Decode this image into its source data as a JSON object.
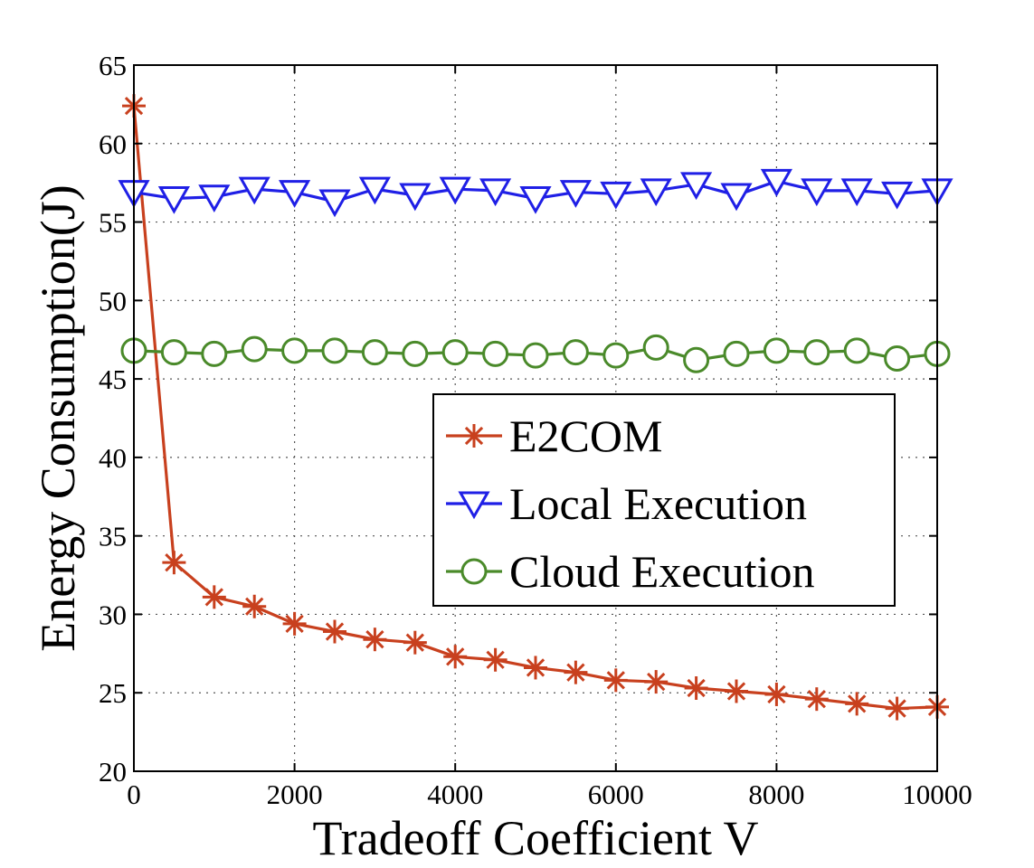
{
  "chart_data": {
    "type": "line",
    "title": "",
    "xlabel": "Tradeoff Coefficient V",
    "ylabel": "Energy Consumption(J)",
    "xlim": [
      0,
      10000
    ],
    "ylim": [
      20,
      65
    ],
    "xticks": [
      "0",
      "2000",
      "4000",
      "6000",
      "8000",
      "10000"
    ],
    "yticks": [
      "20",
      "25",
      "30",
      "35",
      "40",
      "45",
      "50",
      "55",
      "60",
      "65"
    ],
    "grid": true,
    "legend_position": "center-right",
    "x": [
      0,
      500,
      1000,
      1500,
      2000,
      2500,
      3000,
      3500,
      4000,
      4500,
      5000,
      5500,
      6000,
      6500,
      7000,
      7500,
      8000,
      8500,
      9000,
      9500,
      10000
    ],
    "series": [
      {
        "name": "E2COM",
        "color": "#c8401e",
        "marker": "asterisk",
        "values": [
          62.4,
          33.3,
          31.1,
          30.5,
          29.4,
          28.9,
          28.4,
          28.2,
          27.3,
          27.1,
          26.6,
          26.3,
          25.8,
          25.7,
          25.3,
          25.1,
          24.9,
          24.6,
          24.3,
          24.0,
          24.1
        ]
      },
      {
        "name": "Local Execution",
        "color": "#1f1fe6",
        "marker": "triangle-down",
        "values": [
          56.9,
          56.5,
          56.6,
          57.1,
          56.9,
          56.3,
          57.1,
          56.7,
          57.1,
          57.0,
          56.5,
          56.9,
          56.8,
          57.0,
          57.4,
          56.7,
          57.6,
          57.0,
          57.0,
          56.8,
          57.0
        ]
      },
      {
        "name": "Cloud Execution",
        "color": "#4a8a2a",
        "marker": "circle",
        "values": [
          46.8,
          46.7,
          46.6,
          46.9,
          46.8,
          46.8,
          46.7,
          46.6,
          46.7,
          46.6,
          46.5,
          46.7,
          46.5,
          47.0,
          46.2,
          46.6,
          46.8,
          46.7,
          46.8,
          46.3,
          46.6
        ]
      }
    ]
  }
}
